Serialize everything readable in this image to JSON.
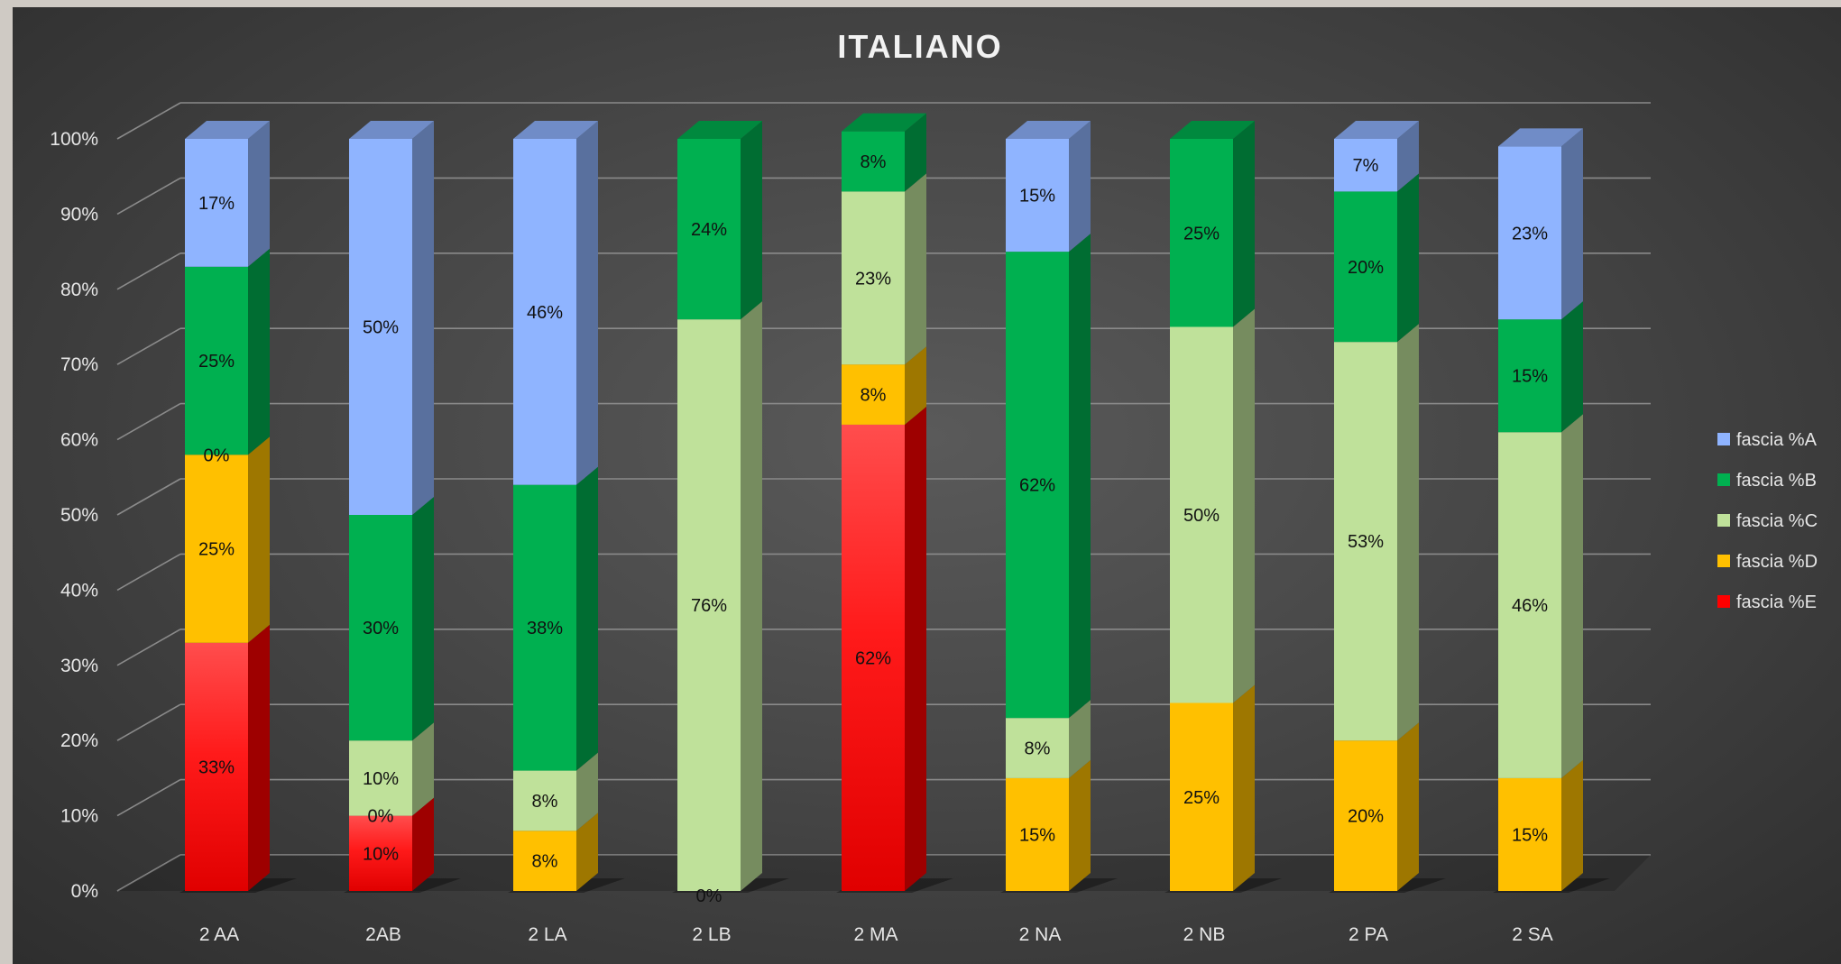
{
  "chart_data": {
    "type": "bar",
    "stacked": true,
    "percent_stacked": true,
    "three_d": true,
    "title": "ITALIANO",
    "categories": [
      "2 AA",
      "2AB",
      "2 LA",
      "2 LB",
      "2 MA",
      "2 NA",
      "2 NB",
      "2 PA",
      "2 SA"
    ],
    "ylim": [
      0,
      100
    ],
    "yticks": [
      "0%",
      "10%",
      "20%",
      "30%",
      "40%",
      "50%",
      "60%",
      "70%",
      "80%",
      "90%",
      "100%"
    ],
    "grid": true,
    "legend_position": "right",
    "series": [
      {
        "name": "fascia %E",
        "color": "#ff0000",
        "values": [
          33,
          10,
          0,
          0,
          62,
          0,
          0,
          0,
          0
        ],
        "labels": [
          "33%",
          "10%",
          "",
          "",
          "62%",
          "",
          "",
          "",
          ""
        ]
      },
      {
        "name": "fascia %D",
        "color": "#ffc000",
        "values": [
          25,
          0,
          8,
          0,
          8,
          15,
          25,
          20,
          15
        ],
        "labels": [
          "25%",
          "0%",
          "8%",
          "",
          "8%",
          "15%",
          "25%",
          "20%",
          "15%"
        ]
      },
      {
        "name": "fascia %C",
        "color": "#bfe19a",
        "values": [
          0,
          10,
          8,
          76,
          23,
          8,
          50,
          53,
          46
        ],
        "labels": [
          "0%",
          "10%",
          "8%",
          "76%",
          "23%",
          "8%",
          "50%",
          "53%",
          "46%"
        ]
      },
      {
        "name": "fascia %B",
        "color": "#00b050",
        "values": [
          25,
          30,
          38,
          24,
          8,
          62,
          25,
          20,
          15
        ],
        "labels": [
          "25%",
          "30%",
          "38%",
          "24%",
          "8%",
          "62%",
          "25%",
          "20%",
          "15%"
        ]
      },
      {
        "name": "fascia %A",
        "color": "#8fb4ff",
        "values": [
          17,
          50,
          46,
          0,
          0,
          15,
          0,
          7,
          23
        ],
        "labels": [
          "17%",
          "50%",
          "46%",
          "",
          "",
          "15%",
          "",
          "7%",
          "23%"
        ]
      }
    ],
    "extra_labels": [
      {
        "category": "2 LB",
        "text": "0%"
      }
    ]
  }
}
